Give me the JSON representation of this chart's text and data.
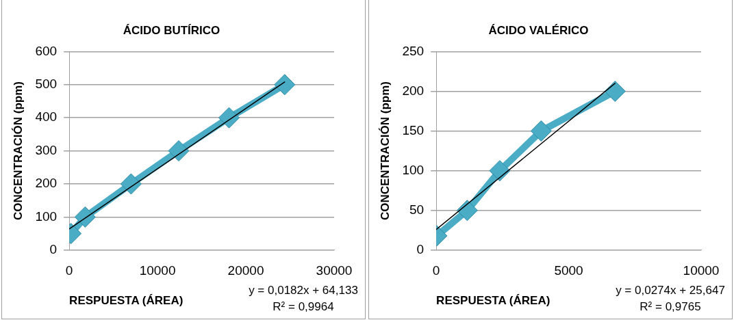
{
  "chart_data": [
    {
      "type": "line",
      "title": "ÁCIDO BUTÍRICO",
      "xlabel": "RESPUESTA (ÁREA)",
      "ylabel": "CONCENTRACIÓN (ppm)",
      "xlim": [
        0,
        30000
      ],
      "xticks": [
        0,
        10000,
        20000,
        30000
      ],
      "ylim": [
        0,
        600
      ],
      "yticks": [
        0,
        100,
        200,
        300,
        400,
        500,
        600
      ],
      "grid": "y",
      "legend": false,
      "marker": "diamond",
      "series": [
        {
          "x": [
            200,
            1800,
            7000,
            12400,
            18100,
            24400
          ],
          "values": [
            50,
            100,
            200,
            300,
            400,
            500
          ],
          "color": "#4bacc6"
        },
        {
          "type": "line",
          "marker": "none",
          "x": [
            0,
            24400
          ],
          "values": [
            64,
            508
          ],
          "color": "#000000"
        }
      ],
      "annotations": [
        "y = 0,0182x + 64,133",
        "R² = 0,9964"
      ]
    },
    {
      "type": "line",
      "title": "ÁCIDO VALÉRICO",
      "xlabel": "RESPUESTA (ÁREA)",
      "ylabel": "CONCENTRACIÓN (ppm)",
      "xlim": [
        0,
        10000
      ],
      "xticks": [
        0,
        5000,
        10000
      ],
      "ylim": [
        0,
        250
      ],
      "yticks": [
        0,
        50,
        100,
        150,
        200,
        250
      ],
      "grid": "y",
      "legend": false,
      "marker": "diamond",
      "series": [
        {
          "x": [
            20,
            1170,
            2400,
            3960,
            6750
          ],
          "values": [
            18,
            50,
            100,
            150,
            200
          ],
          "color": "#4bacc6"
        },
        {
          "type": "line",
          "marker": "none",
          "x": [
            0,
            6750
          ],
          "values": [
            26,
            210
          ],
          "color": "#000000"
        }
      ],
      "annotations": [
        "y = 0,0274x + 25,647",
        "R² = 0,9765"
      ]
    }
  ]
}
